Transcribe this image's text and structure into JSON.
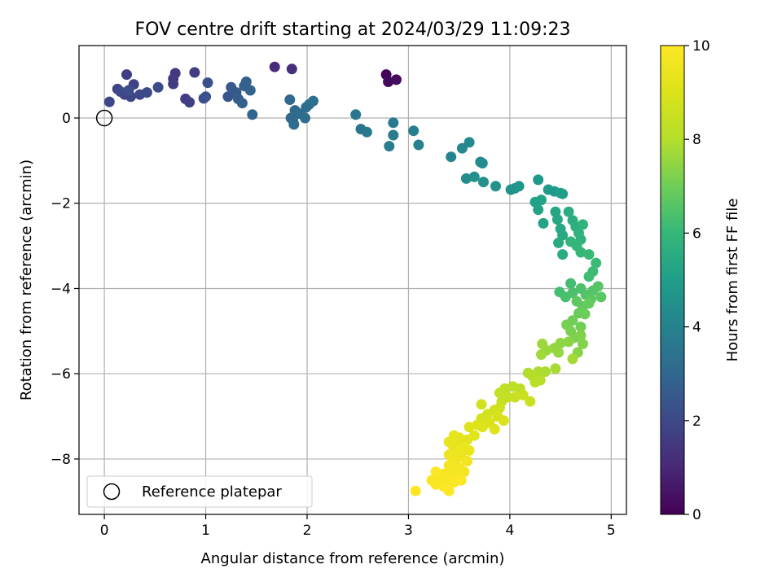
{
  "chart_data": {
    "type": "scatter",
    "title": "FOV centre drift starting at 2024/03/29 11:09:23",
    "xlabel": "Angular distance from reference (arcmin)",
    "ylabel": "Rotation from reference (arcmin)",
    "xlim": [
      -0.25,
      5.15
    ],
    "ylim": [
      -9.3,
      1.7
    ],
    "xticks": [
      0,
      1,
      2,
      3,
      4,
      5
    ],
    "xtick_labels": [
      "0",
      "1",
      "2",
      "3",
      "4",
      "5"
    ],
    "yticks": [
      0,
      -2,
      -4,
      -6,
      -8
    ],
    "ytick_labels": [
      "0",
      "−2",
      "−4",
      "−6",
      "−8"
    ],
    "grid": true,
    "colormap": "viridis",
    "colorbar": {
      "label": "Hours from first FF file",
      "range": [
        0,
        10
      ],
      "ticks": [
        0,
        2,
        4,
        6,
        8,
        10
      ],
      "tick_labels": [
        "0",
        "2",
        "4",
        "6",
        "8",
        "10"
      ]
    },
    "reference_marker": {
      "label": "Reference platepar",
      "x": 0,
      "y": 0
    },
    "legend": {
      "location": "lower-left",
      "entries": [
        "Reference platepar"
      ]
    },
    "points": [
      {
        "x": 2.78,
        "y": 1.02,
        "h": 0.1
      },
      {
        "x": 2.8,
        "y": 0.85,
        "h": 0.2
      },
      {
        "x": 2.88,
        "y": 0.9,
        "h": 0.25
      },
      {
        "x": 1.68,
        "y": 1.2,
        "h": 1.1
      },
      {
        "x": 1.85,
        "y": 1.15,
        "h": 1.2
      },
      {
        "x": 0.7,
        "y": 1.05,
        "h": 1.5
      },
      {
        "x": 0.68,
        "y": 0.92,
        "h": 1.55
      },
      {
        "x": 0.68,
        "y": 0.8,
        "h": 1.6
      },
      {
        "x": 0.89,
        "y": 1.07,
        "h": 1.6
      },
      {
        "x": 0.8,
        "y": 0.45,
        "h": 1.65
      },
      {
        "x": 0.84,
        "y": 0.37,
        "h": 1.7
      },
      {
        "x": 0.22,
        "y": 1.02,
        "h": 1.7
      },
      {
        "x": 0.13,
        "y": 0.68,
        "h": 1.75
      },
      {
        "x": 0.2,
        "y": 0.55,
        "h": 1.8
      },
      {
        "x": 0.29,
        "y": 0.79,
        "h": 1.8
      },
      {
        "x": 0.05,
        "y": 0.38,
        "h": 1.9
      },
      {
        "x": 0.26,
        "y": 0.5,
        "h": 1.9
      },
      {
        "x": 0.35,
        "y": 0.55,
        "h": 1.95
      },
      {
        "x": 0.42,
        "y": 0.6,
        "h": 2.0
      },
      {
        "x": 0.53,
        "y": 0.72,
        "h": 2.05
      },
      {
        "x": 0.16,
        "y": 0.62,
        "h": 2.0
      },
      {
        "x": 0.24,
        "y": 0.65,
        "h": 2.1
      },
      {
        "x": 0.98,
        "y": 0.46,
        "h": 2.2
      },
      {
        "x": 1.02,
        "y": 0.83,
        "h": 2.25
      },
      {
        "x": 1.0,
        "y": 0.5,
        "h": 2.3
      },
      {
        "x": 1.22,
        "y": 0.5,
        "h": 2.4
      },
      {
        "x": 1.25,
        "y": 0.72,
        "h": 2.5
      },
      {
        "x": 1.3,
        "y": 0.6,
        "h": 2.55
      },
      {
        "x": 1.32,
        "y": 0.45,
        "h": 2.6
      },
      {
        "x": 1.38,
        "y": 0.75,
        "h": 2.7
      },
      {
        "x": 1.4,
        "y": 0.85,
        "h": 2.75
      },
      {
        "x": 1.36,
        "y": 0.35,
        "h": 2.8
      },
      {
        "x": 1.44,
        "y": 0.65,
        "h": 2.85
      },
      {
        "x": 1.46,
        "y": 0.08,
        "h": 2.9
      },
      {
        "x": 1.83,
        "y": 0.43,
        "h": 3.0
      },
      {
        "x": 1.88,
        "y": 0.18,
        "h": 3.05
      },
      {
        "x": 1.84,
        "y": 0.0,
        "h": 3.1
      },
      {
        "x": 1.86,
        "y": -0.05,
        "h": 3.1
      },
      {
        "x": 1.87,
        "y": -0.15,
        "h": 3.15
      },
      {
        "x": 1.93,
        "y": 0.1,
        "h": 3.15
      },
      {
        "x": 1.98,
        "y": 0.0,
        "h": 3.2
      },
      {
        "x": 1.99,
        "y": 0.25,
        "h": 3.2
      },
      {
        "x": 2.02,
        "y": 0.32,
        "h": 3.25
      },
      {
        "x": 2.06,
        "y": 0.4,
        "h": 3.3
      },
      {
        "x": 2.48,
        "y": 0.08,
        "h": 3.5
      },
      {
        "x": 2.53,
        "y": -0.26,
        "h": 3.55
      },
      {
        "x": 2.59,
        "y": -0.33,
        "h": 3.6
      },
      {
        "x": 2.85,
        "y": -0.11,
        "h": 3.7
      },
      {
        "x": 2.85,
        "y": -0.4,
        "h": 3.75
      },
      {
        "x": 2.81,
        "y": -0.66,
        "h": 3.8
      },
      {
        "x": 3.05,
        "y": -0.3,
        "h": 3.9
      },
      {
        "x": 3.1,
        "y": -0.63,
        "h": 3.95
      },
      {
        "x": 3.42,
        "y": -0.91,
        "h": 4.1
      },
      {
        "x": 3.53,
        "y": -0.71,
        "h": 4.2
      },
      {
        "x": 3.6,
        "y": -0.57,
        "h": 4.25
      },
      {
        "x": 3.71,
        "y": -1.03,
        "h": 4.3
      },
      {
        "x": 3.73,
        "y": -1.06,
        "h": 4.35
      },
      {
        "x": 3.57,
        "y": -1.42,
        "h": 4.4
      },
      {
        "x": 3.65,
        "y": -1.38,
        "h": 4.45
      },
      {
        "x": 3.74,
        "y": -1.5,
        "h": 4.5
      },
      {
        "x": 3.86,
        "y": -1.6,
        "h": 4.55
      },
      {
        "x": 4.01,
        "y": -1.68,
        "h": 4.6
      },
      {
        "x": 4.05,
        "y": -1.65,
        "h": 4.65
      },
      {
        "x": 4.09,
        "y": -1.6,
        "h": 4.7
      },
      {
        "x": 4.28,
        "y": -1.45,
        "h": 4.8
      },
      {
        "x": 4.38,
        "y": -1.68,
        "h": 4.85
      },
      {
        "x": 4.44,
        "y": -1.72,
        "h": 4.9
      },
      {
        "x": 4.5,
        "y": -1.76,
        "h": 5.0
      },
      {
        "x": 4.52,
        "y": -1.78,
        "h": 5.05
      },
      {
        "x": 4.25,
        "y": -1.97,
        "h": 5.1
      },
      {
        "x": 4.31,
        "y": -1.92,
        "h": 5.15
      },
      {
        "x": 4.28,
        "y": -2.15,
        "h": 5.2
      },
      {
        "x": 4.33,
        "y": -2.47,
        "h": 5.25
      },
      {
        "x": 4.45,
        "y": -2.2,
        "h": 5.3
      },
      {
        "x": 4.47,
        "y": -2.38,
        "h": 5.35
      },
      {
        "x": 4.5,
        "y": -2.6,
        "h": 5.4
      },
      {
        "x": 4.52,
        "y": -2.75,
        "h": 5.45
      },
      {
        "x": 4.48,
        "y": -2.93,
        "h": 5.5
      },
      {
        "x": 4.52,
        "y": -3.2,
        "h": 5.55
      },
      {
        "x": 4.58,
        "y": -2.2,
        "h": 5.6
      },
      {
        "x": 4.62,
        "y": -2.4,
        "h": 5.65
      },
      {
        "x": 4.65,
        "y": -2.55,
        "h": 5.7
      },
      {
        "x": 4.68,
        "y": -2.7,
        "h": 5.75
      },
      {
        "x": 4.7,
        "y": -2.85,
        "h": 5.8
      },
      {
        "x": 4.72,
        "y": -2.5,
        "h": 5.85
      },
      {
        "x": 4.6,
        "y": -2.9,
        "h": 5.9
      },
      {
        "x": 4.66,
        "y": -3.0,
        "h": 5.95
      },
      {
        "x": 4.7,
        "y": -3.15,
        "h": 6.0
      },
      {
        "x": 4.78,
        "y": -3.2,
        "h": 6.05
      },
      {
        "x": 4.85,
        "y": -3.4,
        "h": 6.1
      },
      {
        "x": 4.82,
        "y": -3.6,
        "h": 6.15
      },
      {
        "x": 4.78,
        "y": -3.72,
        "h": 6.2
      },
      {
        "x": 4.6,
        "y": -3.88,
        "h": 6.25
      },
      {
        "x": 4.49,
        "y": -4.08,
        "h": 6.3
      },
      {
        "x": 4.55,
        "y": -4.2,
        "h": 6.35
      },
      {
        "x": 4.62,
        "y": -4.1,
        "h": 6.4
      },
      {
        "x": 4.7,
        "y": -4.0,
        "h": 6.45
      },
      {
        "x": 4.75,
        "y": -4.15,
        "h": 6.5
      },
      {
        "x": 4.82,
        "y": -4.05,
        "h": 6.55
      },
      {
        "x": 4.87,
        "y": -3.95,
        "h": 6.6
      },
      {
        "x": 4.9,
        "y": -4.2,
        "h": 6.65
      },
      {
        "x": 4.8,
        "y": -4.25,
        "h": 6.7
      },
      {
        "x": 4.66,
        "y": -4.3,
        "h": 6.75
      },
      {
        "x": 4.72,
        "y": -4.42,
        "h": 6.8
      },
      {
        "x": 4.78,
        "y": -4.35,
        "h": 6.85
      },
      {
        "x": 4.68,
        "y": -4.58,
        "h": 6.9
      },
      {
        "x": 4.74,
        "y": -4.6,
        "h": 6.95
      },
      {
        "x": 4.62,
        "y": -4.75,
        "h": 7.0
      },
      {
        "x": 4.7,
        "y": -4.9,
        "h": 7.05
      },
      {
        "x": 4.56,
        "y": -4.85,
        "h": 7.1
      },
      {
        "x": 4.6,
        "y": -5.0,
        "h": 7.15
      },
      {
        "x": 4.64,
        "y": -5.15,
        "h": 7.2
      },
      {
        "x": 4.7,
        "y": -5.1,
        "h": 7.25
      },
      {
        "x": 4.72,
        "y": -5.3,
        "h": 7.3
      },
      {
        "x": 4.67,
        "y": -5.5,
        "h": 7.35
      },
      {
        "x": 4.58,
        "y": -5.25,
        "h": 7.4
      },
      {
        "x": 4.5,
        "y": -5.28,
        "h": 7.45
      },
      {
        "x": 4.44,
        "y": -5.4,
        "h": 7.5
      },
      {
        "x": 4.48,
        "y": -5.5,
        "h": 7.55
      },
      {
        "x": 4.36,
        "y": -5.45,
        "h": 7.6
      },
      {
        "x": 4.32,
        "y": -5.3,
        "h": 7.65
      },
      {
        "x": 4.31,
        "y": -5.55,
        "h": 7.7
      },
      {
        "x": 4.62,
        "y": -5.65,
        "h": 7.75
      },
      {
        "x": 4.45,
        "y": -5.88,
        "h": 7.8
      },
      {
        "x": 4.35,
        "y": -5.95,
        "h": 7.85
      },
      {
        "x": 4.28,
        "y": -5.95,
        "h": 7.9
      },
      {
        "x": 4.18,
        "y": -5.98,
        "h": 7.95
      },
      {
        "x": 4.22,
        "y": -6.05,
        "h": 8.0
      },
      {
        "x": 4.3,
        "y": -6.15,
        "h": 8.05
      },
      {
        "x": 4.25,
        "y": -6.2,
        "h": 8.1
      },
      {
        "x": 4.1,
        "y": -6.35,
        "h": 8.15
      },
      {
        "x": 4.03,
        "y": -6.3,
        "h": 8.2
      },
      {
        "x": 3.95,
        "y": -6.35,
        "h": 8.25
      },
      {
        "x": 3.9,
        "y": -6.45,
        "h": 8.3
      },
      {
        "x": 3.98,
        "y": -6.55,
        "h": 8.35
      },
      {
        "x": 3.92,
        "y": -6.65,
        "h": 8.4
      },
      {
        "x": 4.05,
        "y": -6.55,
        "h": 8.45
      },
      {
        "x": 4.2,
        "y": -6.65,
        "h": 8.5
      },
      {
        "x": 4.13,
        "y": -6.5,
        "h": 8.55
      },
      {
        "x": 3.9,
        "y": -6.8,
        "h": 8.6
      },
      {
        "x": 3.85,
        "y": -6.85,
        "h": 8.65
      },
      {
        "x": 3.72,
        "y": -6.72,
        "h": 8.7
      },
      {
        "x": 3.78,
        "y": -6.95,
        "h": 8.75
      },
      {
        "x": 3.72,
        "y": -7.05,
        "h": 8.8
      },
      {
        "x": 3.88,
        "y": -7.0,
        "h": 8.85
      },
      {
        "x": 3.94,
        "y": -7.1,
        "h": 8.9
      },
      {
        "x": 3.8,
        "y": -7.15,
        "h": 8.95
      },
      {
        "x": 3.68,
        "y": -7.2,
        "h": 9.0
      },
      {
        "x": 3.6,
        "y": -7.25,
        "h": 9.05
      },
      {
        "x": 3.73,
        "y": -7.25,
        "h": 9.1
      },
      {
        "x": 3.85,
        "y": -7.3,
        "h": 9.1
      },
      {
        "x": 3.65,
        "y": -7.45,
        "h": 9.15
      },
      {
        "x": 3.58,
        "y": -7.55,
        "h": 9.2
      },
      {
        "x": 3.52,
        "y": -7.6,
        "h": 9.25
      },
      {
        "x": 3.45,
        "y": -7.45,
        "h": 9.3
      },
      {
        "x": 3.5,
        "y": -7.5,
        "h": 9.3
      },
      {
        "x": 3.4,
        "y": -7.6,
        "h": 9.35
      },
      {
        "x": 3.44,
        "y": -7.7,
        "h": 9.35
      },
      {
        "x": 3.55,
        "y": -7.72,
        "h": 9.4
      },
      {
        "x": 3.6,
        "y": -7.8,
        "h": 9.45
      },
      {
        "x": 3.48,
        "y": -7.85,
        "h": 9.5
      },
      {
        "x": 3.4,
        "y": -7.9,
        "h": 9.5
      },
      {
        "x": 3.52,
        "y": -7.95,
        "h": 9.55
      },
      {
        "x": 3.58,
        "y": -8.05,
        "h": 9.6
      },
      {
        "x": 3.45,
        "y": -8.05,
        "h": 9.6
      },
      {
        "x": 3.4,
        "y": -8.15,
        "h": 9.65
      },
      {
        "x": 3.5,
        "y": -8.2,
        "h": 9.7
      },
      {
        "x": 3.55,
        "y": -8.3,
        "h": 9.7
      },
      {
        "x": 3.42,
        "y": -8.3,
        "h": 9.75
      },
      {
        "x": 3.35,
        "y": -8.35,
        "h": 9.75
      },
      {
        "x": 3.48,
        "y": -8.4,
        "h": 9.8
      },
      {
        "x": 3.3,
        "y": -8.45,
        "h": 9.8
      },
      {
        "x": 3.23,
        "y": -8.5,
        "h": 9.85
      },
      {
        "x": 3.38,
        "y": -8.5,
        "h": 9.85
      },
      {
        "x": 3.45,
        "y": -8.55,
        "h": 9.9
      },
      {
        "x": 3.27,
        "y": -8.6,
        "h": 9.9
      },
      {
        "x": 3.35,
        "y": -8.65,
        "h": 9.92
      },
      {
        "x": 3.52,
        "y": -8.5,
        "h": 9.94
      },
      {
        "x": 3.4,
        "y": -8.75,
        "h": 9.96
      },
      {
        "x": 3.27,
        "y": -8.3,
        "h": 9.97
      },
      {
        "x": 3.07,
        "y": -8.75,
        "h": 10.0
      }
    ]
  }
}
